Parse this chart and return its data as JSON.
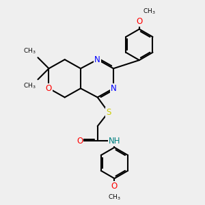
{
  "background_color": "#efefef",
  "atom_colors": {
    "N": "#0000ff",
    "O": "#ff0000",
    "S": "#cccc00",
    "C": "#000000",
    "H": "#008080"
  },
  "bond_color": "#000000",
  "bond_width": 1.5,
  "font_size_atom": 8.5,
  "figsize": [
    3.0,
    3.0
  ],
  "dpi": 100
}
